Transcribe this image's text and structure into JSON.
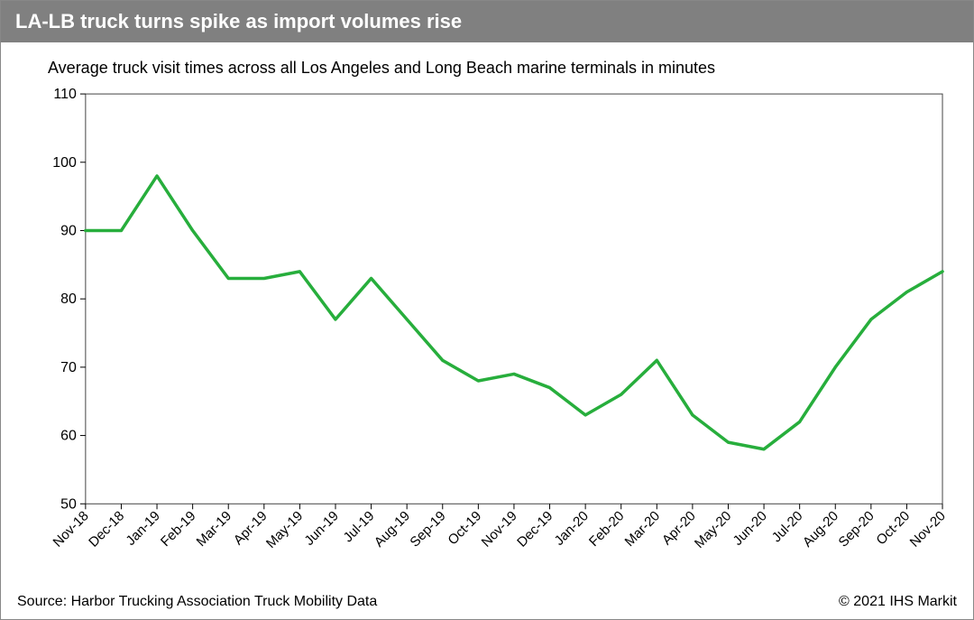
{
  "header": {
    "title": "LA-LB truck turns spike as import volumes rise"
  },
  "chart": {
    "type": "line",
    "subtitle": "Average truck visit times across all Los Angeles and Long Beach marine terminals in minutes",
    "line_color": "#27ae3c",
    "line_width": 3.5,
    "background_color": "#ffffff",
    "border_color": "#444444",
    "tick_font_size": 16,
    "xlabels": [
      "Nov-18",
      "Dec-18",
      "Jan-19",
      "Feb-19",
      "Mar-19",
      "Apr-19",
      "May-19",
      "Jun-19",
      "Jul-19",
      "Aug-19",
      "Sep-19",
      "Oct-19",
      "Nov-19",
      "Dec-19",
      "Jan-20",
      "Feb-20",
      "Mar-20",
      "Apr-20",
      "May-20",
      "Jun-20",
      "Jul-20",
      "Aug-20",
      "Sep-20",
      "Oct-20",
      "Nov-20"
    ],
    "yticks": [
      50,
      60,
      70,
      80,
      90,
      100,
      110
    ],
    "ylim": [
      50,
      110
    ],
    "values": [
      90,
      90,
      98,
      90,
      83,
      83,
      84,
      77,
      83,
      77,
      71,
      68,
      69,
      67,
      63,
      66,
      71,
      63,
      59,
      58,
      62,
      70,
      77,
      81,
      84
    ]
  },
  "footer": {
    "source": "Source: Harbor Trucking Association Truck Mobility Data",
    "copyright": "© 2021 IHS Markit"
  }
}
